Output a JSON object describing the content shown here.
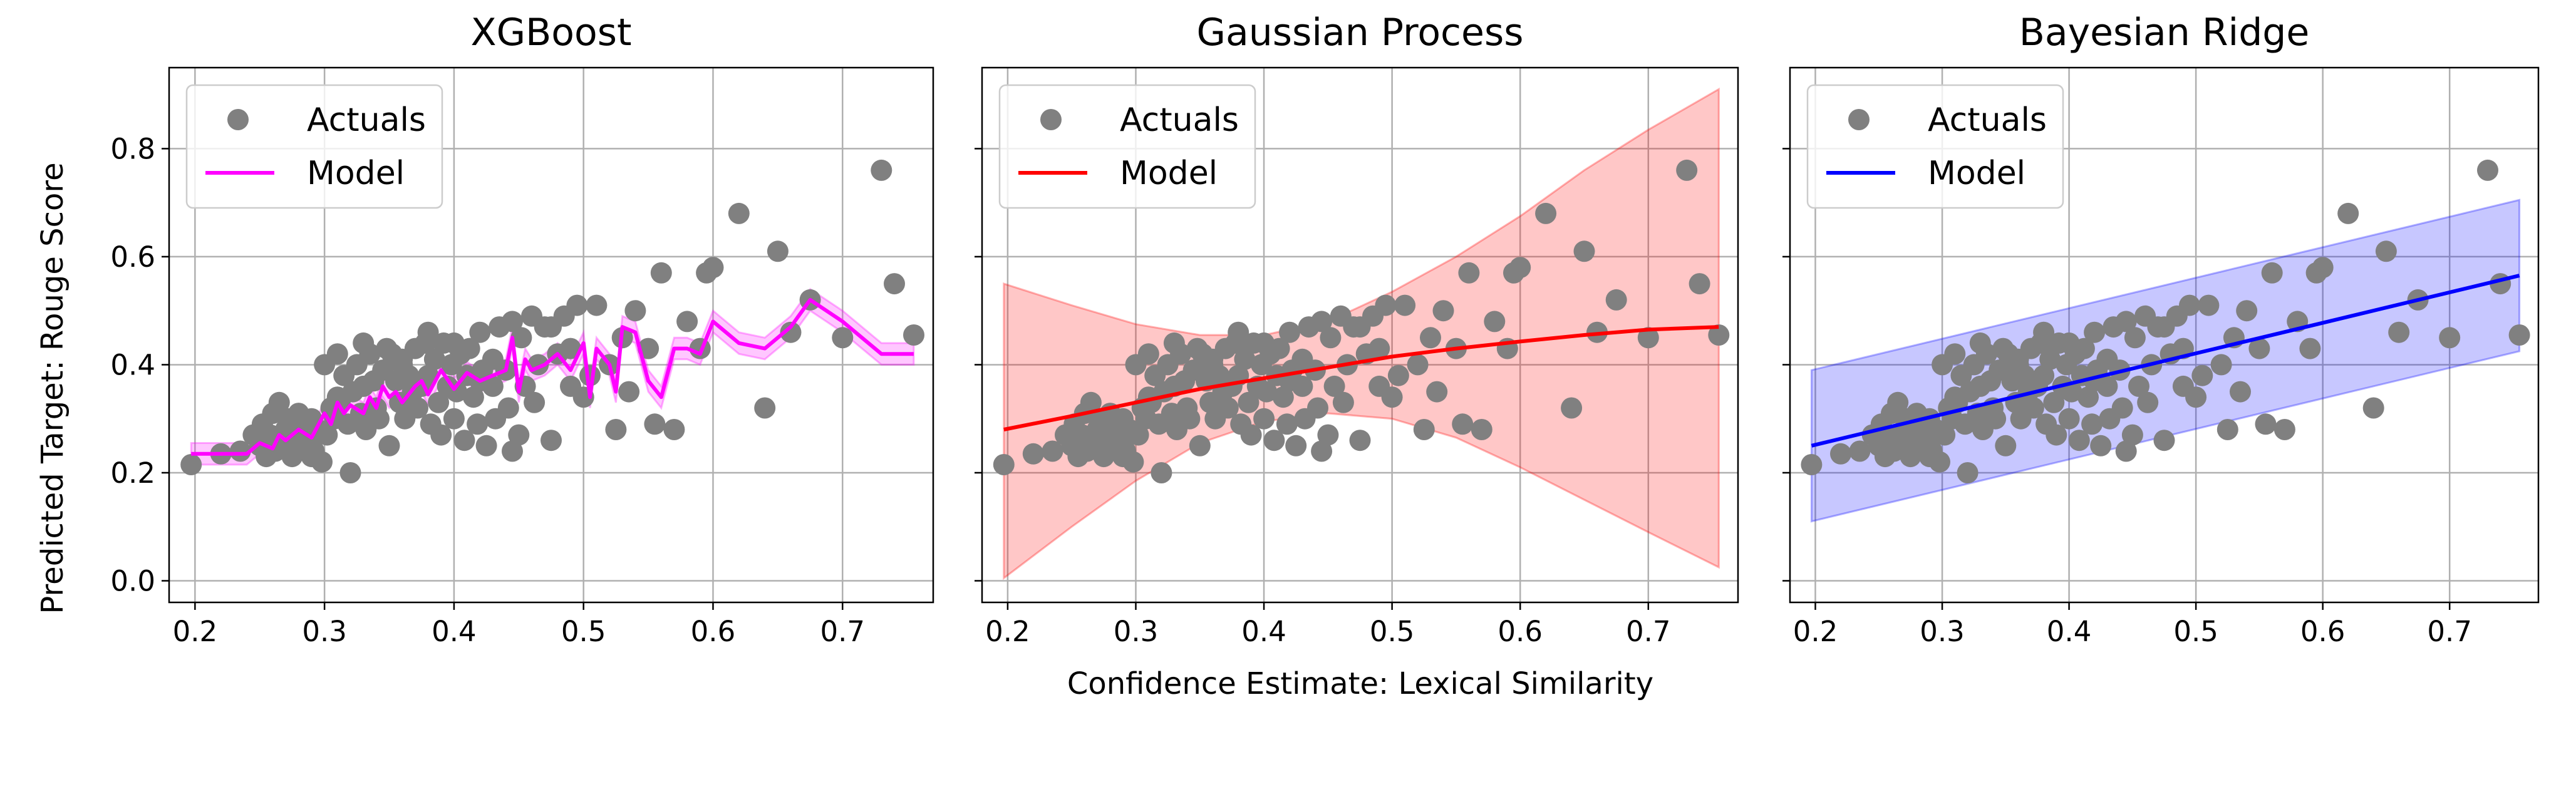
{
  "figure": {
    "xlabel": "Confidence Estimate: Lexical Similarity",
    "ylabel": "Predicted Target: Rouge Score"
  },
  "chart_data": [
    {
      "type": "scatter",
      "title": "XGBoost",
      "xlim": [
        0.18,
        0.77
      ],
      "ylim": [
        -0.04,
        0.95
      ],
      "xticks": [
        0.2,
        0.3,
        0.4,
        0.5,
        0.6,
        0.7
      ],
      "xtick_labels": [
        "0.2",
        "0.3",
        "0.4",
        "0.5",
        "0.6",
        "0.7"
      ],
      "yticks": [
        0.0,
        0.2,
        0.4,
        0.6,
        0.8
      ],
      "ytick_labels": [
        "0.0",
        "0.2",
        "0.4",
        "0.6",
        "0.8"
      ],
      "grid": true,
      "legend_position": "upper-left",
      "series": [
        {
          "name": "Actuals",
          "kind": "scatter",
          "color": "#808080"
        },
        {
          "name": "Model",
          "kind": "line",
          "color": "#ff00ff",
          "band_color": "#ff00ff",
          "x": [
            0.197,
            0.22,
            0.24,
            0.25,
            0.26,
            0.265,
            0.27,
            0.28,
            0.29,
            0.3,
            0.305,
            0.31,
            0.315,
            0.32,
            0.33,
            0.335,
            0.34,
            0.345,
            0.35,
            0.355,
            0.36,
            0.37,
            0.375,
            0.38,
            0.39,
            0.4,
            0.41,
            0.42,
            0.43,
            0.44,
            0.445,
            0.45,
            0.455,
            0.46,
            0.47,
            0.48,
            0.49,
            0.5,
            0.505,
            0.51,
            0.52,
            0.525,
            0.53,
            0.54,
            0.55,
            0.56,
            0.57,
            0.58,
            0.59,
            0.6,
            0.62,
            0.64,
            0.66,
            0.675,
            0.7,
            0.72,
            0.73,
            0.755
          ],
          "y": [
            0.235,
            0.235,
            0.235,
            0.255,
            0.245,
            0.27,
            0.26,
            0.28,
            0.265,
            0.31,
            0.29,
            0.33,
            0.31,
            0.325,
            0.31,
            0.34,
            0.32,
            0.36,
            0.34,
            0.35,
            0.33,
            0.36,
            0.37,
            0.345,
            0.39,
            0.355,
            0.385,
            0.37,
            0.38,
            0.39,
            0.45,
            0.35,
            0.41,
            0.39,
            0.4,
            0.42,
            0.39,
            0.44,
            0.34,
            0.43,
            0.4,
            0.35,
            0.47,
            0.46,
            0.37,
            0.34,
            0.43,
            0.43,
            0.42,
            0.48,
            0.44,
            0.43,
            0.47,
            0.52,
            0.48,
            0.44,
            0.42,
            0.42
          ],
          "band": 0.02
        }
      ]
    },
    {
      "type": "scatter",
      "title": "Gaussian Process",
      "xlim": [
        0.18,
        0.77
      ],
      "ylim": [
        -0.04,
        0.95
      ],
      "xticks": [
        0.2,
        0.3,
        0.4,
        0.5,
        0.6,
        0.7
      ],
      "xtick_labels": [
        "0.2",
        "0.3",
        "0.4",
        "0.5",
        "0.6",
        "0.7"
      ],
      "yticks": [
        0.0,
        0.2,
        0.4,
        0.6,
        0.8
      ],
      "grid": true,
      "legend_position": "upper-left",
      "series": [
        {
          "name": "Actuals",
          "kind": "scatter",
          "color": "#808080"
        },
        {
          "name": "Model",
          "kind": "line",
          "color": "#ff0000",
          "band_color": "#ff0000",
          "x": [
            0.197,
            0.25,
            0.3,
            0.35,
            0.4,
            0.45,
            0.5,
            0.55,
            0.6,
            0.65,
            0.7,
            0.755
          ],
          "y": [
            0.28,
            0.305,
            0.33,
            0.355,
            0.375,
            0.395,
            0.415,
            0.43,
            0.443,
            0.455,
            0.465,
            0.47
          ],
          "upper": [
            0.55,
            0.51,
            0.475,
            0.455,
            0.455,
            0.48,
            0.535,
            0.6,
            0.675,
            0.76,
            0.835,
            0.91
          ],
          "lower": [
            0.005,
            0.1,
            0.185,
            0.255,
            0.295,
            0.31,
            0.3,
            0.265,
            0.21,
            0.15,
            0.09,
            0.025
          ]
        }
      ]
    },
    {
      "type": "scatter",
      "title": "Bayesian Ridge",
      "xlim": [
        0.18,
        0.77
      ],
      "ylim": [
        -0.04,
        0.95
      ],
      "xticks": [
        0.2,
        0.3,
        0.4,
        0.5,
        0.6,
        0.7
      ],
      "xtick_labels": [
        "0.2",
        "0.3",
        "0.4",
        "0.5",
        "0.6",
        "0.7"
      ],
      "yticks": [
        0.0,
        0.2,
        0.4,
        0.6,
        0.8
      ],
      "grid": true,
      "legend_position": "upper-left",
      "series": [
        {
          "name": "Actuals",
          "kind": "scatter",
          "color": "#808080"
        },
        {
          "name": "Model",
          "kind": "line",
          "color": "#0000ff",
          "band_color": "#0000ff",
          "x": [
            0.197,
            0.755
          ],
          "y": [
            0.25,
            0.565
          ],
          "upper": [
            0.39,
            0.705
          ],
          "lower": [
            0.11,
            0.425
          ]
        }
      ]
    }
  ],
  "actuals": {
    "x": [
      0.197,
      0.22,
      0.235,
      0.245,
      0.25,
      0.252,
      0.255,
      0.258,
      0.26,
      0.262,
      0.265,
      0.268,
      0.27,
      0.272,
      0.275,
      0.278,
      0.28,
      0.282,
      0.285,
      0.288,
      0.29,
      0.292,
      0.295,
      0.298,
      0.3,
      0.302,
      0.305,
      0.308,
      0.31,
      0.312,
      0.315,
      0.318,
      0.32,
      0.322,
      0.325,
      0.328,
      0.33,
      0.332,
      0.335,
      0.338,
      0.34,
      0.342,
      0.345,
      0.348,
      0.35,
      0.352,
      0.355,
      0.358,
      0.36,
      0.362,
      0.365,
      0.368,
      0.37,
      0.372,
      0.375,
      0.378,
      0.38,
      0.382,
      0.385,
      0.388,
      0.39,
      0.392,
      0.395,
      0.398,
      0.4,
      0.402,
      0.405,
      0.408,
      0.41,
      0.412,
      0.415,
      0.418,
      0.42,
      0.422,
      0.425,
      0.43,
      0.432,
      0.435,
      0.44,
      0.442,
      0.445,
      0.45,
      0.452,
      0.455,
      0.46,
      0.462,
      0.465,
      0.47,
      0.475,
      0.48,
      0.485,
      0.49,
      0.495,
      0.5,
      0.505,
      0.51,
      0.52,
      0.525,
      0.53,
      0.535,
      0.54,
      0.55,
      0.555,
      0.56,
      0.57,
      0.58,
      0.59,
      0.595,
      0.6,
      0.62,
      0.64,
      0.65,
      0.66,
      0.675,
      0.7,
      0.73,
      0.74,
      0.755,
      0.445,
      0.33,
      0.36,
      0.31,
      0.29,
      0.43,
      0.4,
      0.38,
      0.42,
      0.475,
      0.49
    ],
    "y": [
      0.215,
      0.235,
      0.24,
      0.27,
      0.25,
      0.29,
      0.23,
      0.27,
      0.31,
      0.24,
      0.33,
      0.26,
      0.28,
      0.3,
      0.23,
      0.27,
      0.31,
      0.25,
      0.29,
      0.26,
      0.3,
      0.24,
      0.28,
      0.22,
      0.4,
      0.27,
      0.32,
      0.3,
      0.42,
      0.33,
      0.38,
      0.29,
      0.2,
      0.35,
      0.4,
      0.31,
      0.44,
      0.28,
      0.42,
      0.37,
      0.32,
      0.3,
      0.39,
      0.43,
      0.25,
      0.42,
      0.37,
      0.33,
      0.41,
      0.3,
      0.38,
      0.35,
      0.43,
      0.32,
      0.36,
      0.44,
      0.38,
      0.29,
      0.41,
      0.33,
      0.27,
      0.44,
      0.36,
      0.4,
      0.3,
      0.35,
      0.42,
      0.26,
      0.38,
      0.43,
      0.34,
      0.29,
      0.46,
      0.39,
      0.25,
      0.41,
      0.3,
      0.47,
      0.39,
      0.32,
      0.48,
      0.27,
      0.45,
      0.36,
      0.49,
      0.33,
      0.4,
      0.47,
      0.26,
      0.42,
      0.49,
      0.36,
      0.51,
      0.34,
      0.38,
      0.51,
      0.4,
      0.28,
      0.45,
      0.35,
      0.5,
      0.43,
      0.29,
      0.57,
      0.28,
      0.48,
      0.43,
      0.57,
      0.58,
      0.68,
      0.32,
      0.61,
      0.46,
      0.52,
      0.45,
      0.76,
      0.55,
      0.455,
      0.24,
      0.36,
      0.4,
      0.34,
      0.23,
      0.36,
      0.44,
      0.46,
      0.37,
      0.47,
      0.43
    ]
  }
}
